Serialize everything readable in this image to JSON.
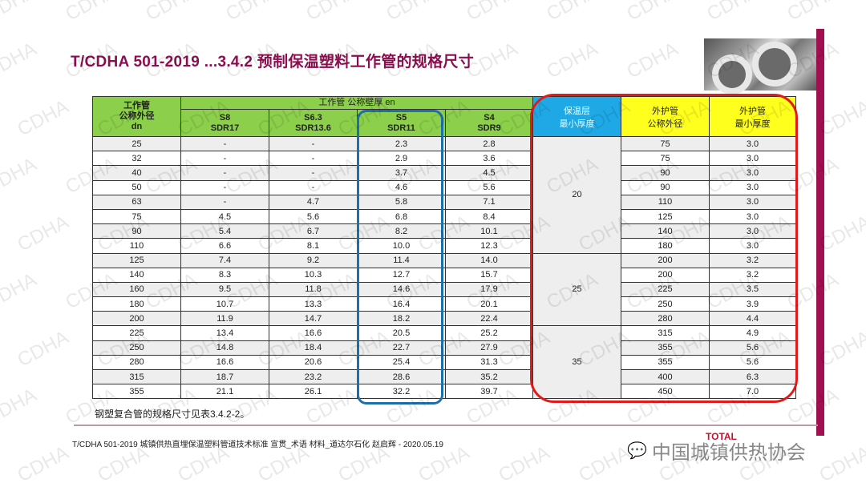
{
  "watermark": "CDHA",
  "title": "T/CDHA 501-2019 ...3.4.2 预制保温塑料工作管的规格尺寸",
  "table": {
    "head_dn": [
      "工作管",
      "公称外径",
      "dn"
    ],
    "head_group": "工作管 公称壁厚 en",
    "series": [
      [
        "S8",
        "SDR17"
      ],
      [
        "S6.3",
        "SDR13.6"
      ],
      [
        "S5",
        "SDR11"
      ],
      [
        "S4",
        "SDR9"
      ]
    ],
    "head_ins": [
      "保温层",
      "最小厚度"
    ],
    "head_od": [
      "外护管",
      "公称外径"
    ],
    "head_ot": [
      "外护管",
      "最小厚度"
    ],
    "rows": [
      [
        "25",
        "-",
        "-",
        "2.3",
        "2.8",
        "75",
        "3.0"
      ],
      [
        "32",
        "-",
        "-",
        "2.9",
        "3.6",
        "75",
        "3.0"
      ],
      [
        "40",
        "-",
        "-",
        "3.7",
        "4.5",
        "90",
        "3.0"
      ],
      [
        "50",
        "-",
        "-",
        "4.6",
        "5.6",
        "90",
        "3.0"
      ],
      [
        "63",
        "-",
        "4.7",
        "5.8",
        "7.1",
        "110",
        "3.0"
      ],
      [
        "75",
        "4.5",
        "5.6",
        "6.8",
        "8.4",
        "125",
        "3.0"
      ],
      [
        "90",
        "5.4",
        "6.7",
        "8.2",
        "10.1",
        "140",
        "3.0"
      ],
      [
        "110",
        "6.6",
        "8.1",
        "10.0",
        "12.3",
        "180",
        "3.0"
      ],
      [
        "125",
        "7.4",
        "9.2",
        "11.4",
        "14.0",
        "200",
        "3.2"
      ],
      [
        "140",
        "8.3",
        "10.3",
        "12.7",
        "15.7",
        "200",
        "3.2"
      ],
      [
        "160",
        "9.5",
        "11.8",
        "14.6",
        "17.9",
        "225",
        "3.5"
      ],
      [
        "180",
        "10.7",
        "13.3",
        "16.4",
        "20.1",
        "250",
        "3.9"
      ],
      [
        "200",
        "11.9",
        "14.7",
        "18.2",
        "22.4",
        "280",
        "4.4"
      ],
      [
        "225",
        "13.4",
        "16.6",
        "20.5",
        "25.2",
        "315",
        "4.9"
      ],
      [
        "250",
        "14.8",
        "18.4",
        "22.7",
        "27.9",
        "355",
        "5.6"
      ],
      [
        "280",
        "16.6",
        "20.6",
        "25.4",
        "31.3",
        "355",
        "5.6"
      ],
      [
        "315",
        "18.7",
        "23.2",
        "28.6",
        "35.2",
        "400",
        "6.3"
      ],
      [
        "355",
        "21.1",
        "26.1",
        "32.2",
        "39.7",
        "450",
        "7.0"
      ]
    ],
    "insulation": [
      {
        "value": "20",
        "span": 8
      },
      {
        "value": "25",
        "span": 5
      },
      {
        "value": "35",
        "span": 5
      }
    ]
  },
  "note": "钢塑复合管的规格尺寸见表3.4.2-2。",
  "footer": "T/CDHA 501-2019 城镇供热直埋保温塑料管道技术标准 宣贯_术语 材料_道达尔石化 赵启辉 - 2020.05.19",
  "brand": "中国城镇供热协会",
  "logo": "TOTAL"
}
